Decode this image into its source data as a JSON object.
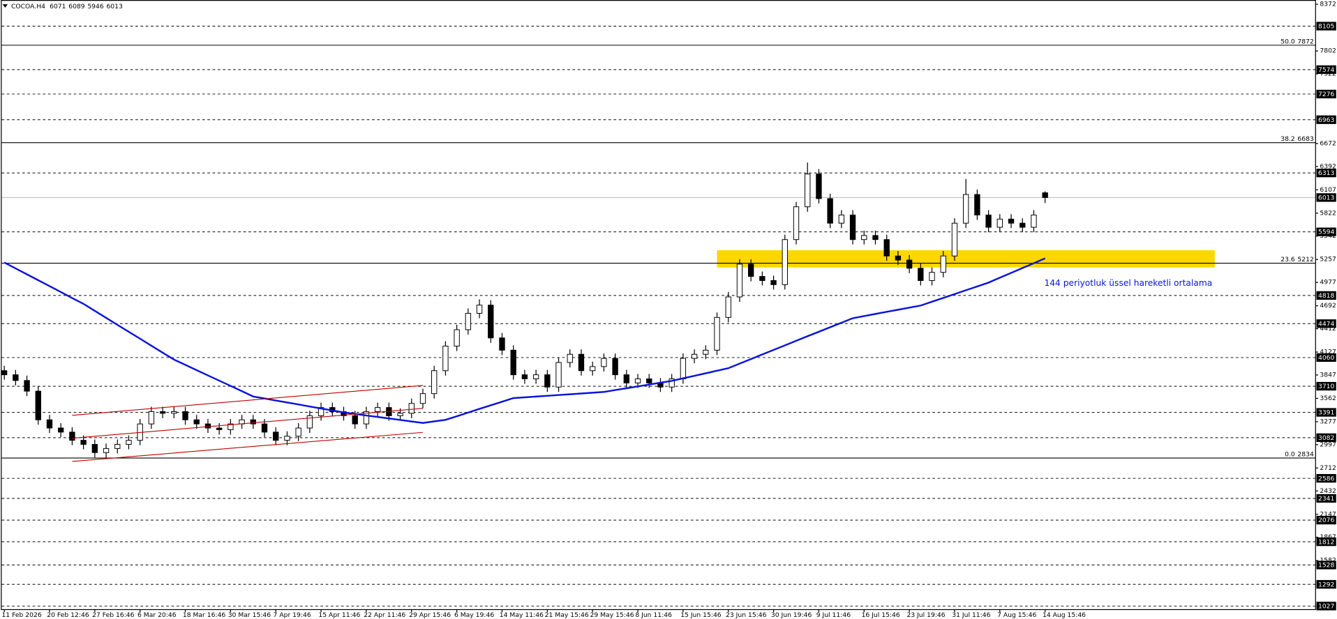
{
  "chart_data": {
    "type": "candlestick",
    "symbol": "COCOA.H4",
    "categories": [
      "11 Feb 2026",
      null,
      null,
      null,
      "20 Feb 12:46",
      null,
      null,
      null,
      "27 Feb 16:46",
      null,
      null,
      null,
      "6 Mar 20:46",
      null,
      null,
      null,
      "18 Mar 16:46",
      null,
      null,
      null,
      "30 Mar 15:46",
      null,
      null,
      null,
      "7 Apr 19:46",
      null,
      null,
      null,
      "15 Apr 11:46",
      null,
      null,
      null,
      "22 Apr 11:46",
      null,
      null,
      null,
      "29 Apr 15:46",
      null,
      null,
      null,
      "6 May 19:46",
      null,
      null,
      null,
      "14 May 11:46",
      null,
      null,
      null,
      "21 May 15:46",
      null,
      null,
      null,
      "29 May 15:46",
      null,
      null,
      null,
      "8 Jun 11:46",
      null,
      null,
      null,
      "15 Jun 15:46",
      null,
      null,
      null,
      "23 Jun 15:46",
      null,
      null,
      null,
      "30 Jun 19:46",
      null,
      null,
      null,
      "9 Jul 11:46",
      null,
      null,
      null,
      "16 Jul 15:46",
      null,
      null,
      null,
      "23 Jul 19:46",
      null,
      null,
      null,
      "31 Jul 11:46",
      null,
      null,
      null,
      "7 Aug 15:46",
      null,
      null,
      null,
      "14 Aug 15:46"
    ],
    "open": [
      3900,
      3850,
      3780,
      3650,
      3300,
      3200,
      3150,
      3050,
      3000,
      2900,
      2950,
      3000,
      3050,
      3250,
      3400,
      3380,
      3400,
      3300,
      3250,
      3200,
      3180,
      3250,
      3300,
      3250,
      3150,
      3050,
      3100,
      3200,
      3350,
      3450,
      3400,
      3350,
      3250,
      3400,
      3450,
      3350,
      3380,
      3500,
      3620,
      3900,
      4200,
      4400,
      4600,
      4700,
      4300,
      4150,
      3850,
      3800,
      3850,
      3700,
      4000,
      4100,
      3900,
      3950,
      4050,
      3850,
      3750,
      3800,
      3750,
      3700,
      3800,
      4050,
      4100,
      4150,
      4550,
      4800,
      5200,
      5050,
      5000,
      4950,
      5500,
      5900,
      6300,
      6000,
      5700,
      5800,
      5500,
      5550,
      5500,
      5300,
      5250,
      5150,
      5000,
      5100,
      5300,
      5700,
      6050,
      5800,
      5650,
      5750,
      5700,
      5650,
      6071
    ],
    "high": [
      3960,
      3910,
      3840,
      3710,
      3360,
      3260,
      3210,
      3110,
      3060,
      3010,
      3060,
      3110,
      3310,
      3460,
      3460,
      3460,
      3460,
      3360,
      3310,
      3260,
      3310,
      3360,
      3360,
      3310,
      3210,
      3160,
      3260,
      3410,
      3510,
      3510,
      3460,
      3410,
      3460,
      3510,
      3510,
      3440,
      3560,
      3680,
      3960,
      4260,
      4460,
      4660,
      4770,
      4760,
      4360,
      4210,
      3910,
      3910,
      3910,
      4060,
      4160,
      4160,
      4010,
      4110,
      4110,
      3910,
      3860,
      3860,
      3810,
      3860,
      4110,
      4160,
      4210,
      4610,
      4860,
      5260,
      5260,
      5110,
      5060,
      5560,
      5960,
      6440,
      6360,
      6060,
      5860,
      5860,
      5610,
      5610,
      5560,
      5360,
      5310,
      5210,
      5160,
      5360,
      5760,
      6240,
      6110,
      5860,
      5810,
      5810,
      5760,
      5860,
      6089
    ],
    "low": [
      3790,
      3720,
      3590,
      3240,
      3140,
      3090,
      2990,
      2940,
      2840,
      2840,
      2890,
      2940,
      2990,
      3190,
      3320,
      3320,
      3240,
      3190,
      3140,
      3120,
      3120,
      3190,
      3190,
      3090,
      2990,
      2990,
      3040,
      3140,
      3290,
      3340,
      3290,
      3190,
      3190,
      3340,
      3290,
      3290,
      3320,
      3440,
      3560,
      3840,
      4140,
      4340,
      4540,
      4240,
      4090,
      3790,
      3740,
      3740,
      3640,
      3640,
      3940,
      3840,
      3840,
      3890,
      3790,
      3690,
      3690,
      3690,
      3640,
      3640,
      3740,
      3990,
      4040,
      4090,
      4490,
      4740,
      4990,
      4940,
      4890,
      4890,
      5440,
      5840,
      5940,
      5640,
      5640,
      5440,
      5440,
      5440,
      5240,
      5190,
      5090,
      4940,
      4940,
      5040,
      5240,
      5640,
      5740,
      5590,
      5590,
      5640,
      5590,
      5590,
      5946
    ],
    "close": [
      3850,
      3780,
      3650,
      3300,
      3200,
      3150,
      3050,
      3000,
      2900,
      2950,
      3000,
      3050,
      3250,
      3400,
      3380,
      3400,
      3300,
      3250,
      3200,
      3180,
      3250,
      3300,
      3250,
      3150,
      3050,
      3100,
      3200,
      3350,
      3450,
      3400,
      3350,
      3250,
      3400,
      3450,
      3350,
      3380,
      3500,
      3620,
      3900,
      4200,
      4400,
      4600,
      4700,
      4300,
      4150,
      3850,
      3800,
      3850,
      3700,
      4000,
      4100,
      3900,
      3950,
      4050,
      3850,
      3750,
      3800,
      3750,
      3700,
      3800,
      4050,
      4100,
      4150,
      4550,
      4800,
      5200,
      5050,
      5000,
      4950,
      5500,
      5900,
      6300,
      6000,
      5700,
      5800,
      5500,
      5550,
      5500,
      5300,
      5250,
      5150,
      5000,
      5100,
      5300,
      5700,
      6050,
      5800,
      5650,
      5750,
      5700,
      5650,
      5800,
      6013
    ],
    "up_color": "#ffffff",
    "down_color": "#000000",
    "ylim": [
      984,
      8424
    ],
    "yticks": [
      8372,
      7802,
      7522,
      6672,
      6392,
      6107,
      5822,
      5542,
      5257,
      4977,
      4692,
      4412,
      4127,
      3847,
      3562,
      3277,
      2997,
      2712,
      2432,
      2147,
      1867,
      1582
    ],
    "levels": [
      8105,
      7574,
      7276,
      6963,
      6313,
      5594,
      4818,
      4474,
      4060,
      3710,
      3391,
      3082,
      2586,
      2341,
      2076,
      1812,
      1528,
      1292,
      1027
    ],
    "fib_levels": [
      {
        "ratio": "50.0",
        "value": 7872
      },
      {
        "ratio": "38.2",
        "value": 6683
      },
      {
        "ratio": "23.6",
        "value": 5212
      },
      {
        "ratio": "0.0",
        "value": 2834
      }
    ],
    "ema": {
      "name": "144 periyotluk üssel hareketli ortalama",
      "color": "#0a14d8",
      "values": [
        5220,
        5148,
        5076,
        5004,
        4932,
        4860,
        4787,
        4715,
        4630,
        4545,
        4460,
        4375,
        4290,
        4205,
        4120,
        4035,
        3971,
        3907,
        3842,
        3778,
        3714,
        3650,
        3585,
        3561,
        3536,
        3512,
        3488,
        3463,
        3439,
        3415,
        3390,
        3372,
        3353,
        3335,
        3317,
        3299,
        3280,
        3262,
        3281,
        3300,
        3344,
        3388,
        3433,
        3477,
        3521,
        3565,
        3574,
        3584,
        3593,
        3603,
        3612,
        3621,
        3631,
        3640,
        3663,
        3685,
        3708,
        3730,
        3753,
        3775,
        3806,
        3837,
        3868,
        3899,
        3930,
        3986,
        4042,
        4098,
        4153,
        4209,
        4265,
        4320,
        4375,
        4430,
        4485,
        4540,
        4566,
        4592,
        4618,
        4643,
        4669,
        4695,
        4742,
        4788,
        4835,
        4882,
        4928,
        4975,
        5034,
        5093,
        5152,
        5211,
        5270
      ]
    },
    "channel": {
      "color": "#c00000",
      "x_index": [
        6,
        37
      ],
      "lines": [
        [
          3355,
          3720
        ],
        [
          3075,
          3440
        ],
        [
          2792,
          3147
        ]
      ]
    },
    "zone": {
      "color": "#ffd700",
      "x_index": [
        63,
        107
      ],
      "ylim": [
        5160,
        5370
      ]
    },
    "grid": false
  }
}
